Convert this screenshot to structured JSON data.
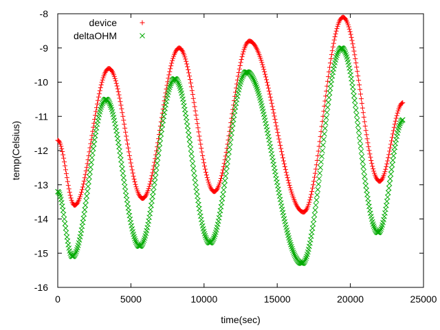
{
  "chart_data": {
    "type": "scatter",
    "title": "",
    "xlabel": "time(sec)",
    "ylabel": "temp(Celsius)",
    "xlim": [
      0,
      25000
    ],
    "ylim": [
      -16,
      -8
    ],
    "x_ticks": [
      0,
      5000,
      10000,
      15000,
      20000,
      25000
    ],
    "y_ticks": [
      -16,
      -15,
      -14,
      -13,
      -12,
      -11,
      -10,
      -9,
      -8
    ],
    "grid": false,
    "legend_position": "top-left",
    "series": [
      {
        "name": "device",
        "color": "#ff0000",
        "marker": "plus",
        "points": [
          [
            0,
            -11.7
          ],
          [
            1150,
            -13.6
          ],
          [
            3500,
            -9.6
          ],
          [
            5800,
            -13.4
          ],
          [
            8300,
            -9.0
          ],
          [
            10700,
            -13.2
          ],
          [
            13100,
            -8.8
          ],
          [
            16800,
            -13.8
          ],
          [
            19500,
            -8.1
          ],
          [
            22000,
            -12.9
          ],
          [
            23600,
            -10.6
          ]
        ]
      },
      {
        "name": "deltaOHM",
        "color": "#00aa00",
        "marker": "cross",
        "points": [
          [
            0,
            -13.2
          ],
          [
            1000,
            -15.1
          ],
          [
            3300,
            -10.5
          ],
          [
            5600,
            -14.8
          ],
          [
            8000,
            -9.9
          ],
          [
            10400,
            -14.7
          ],
          [
            12900,
            -9.7
          ],
          [
            16700,
            -15.3
          ],
          [
            19400,
            -9.0
          ],
          [
            21900,
            -14.4
          ],
          [
            23600,
            -11.1
          ]
        ]
      }
    ]
  }
}
